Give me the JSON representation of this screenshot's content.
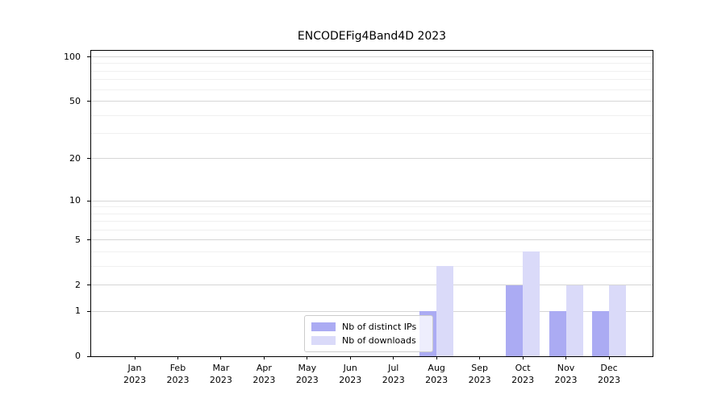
{
  "chart_data": {
    "type": "bar",
    "title": "ENCODEFig4Band4D 2023",
    "categories": [
      "Jan",
      "Feb",
      "Mar",
      "Apr",
      "May",
      "Jun",
      "Jul",
      "Aug",
      "Sep",
      "Oct",
      "Nov",
      "Dec"
    ],
    "x_tick_year": "2023",
    "series": [
      {
        "name": "Nb of distinct IPs",
        "color": "#ababf3",
        "values": [
          0,
          0,
          0,
          0,
          0,
          0,
          0,
          1,
          0,
          2,
          1,
          1
        ]
      },
      {
        "name": "Nb of downloads",
        "color": "#dadaf9",
        "values": [
          0,
          0,
          0,
          0,
          0,
          0,
          0,
          3,
          0,
          4,
          2,
          2
        ]
      }
    ],
    "yscale": "log1p",
    "ylim": [
      0,
      110
    ],
    "y_major_ticks": [
      0,
      1,
      2,
      5,
      10,
      20,
      50,
      100
    ],
    "y_minor_gridlines": [
      3,
      4,
      6,
      7,
      8,
      9,
      30,
      40,
      60,
      70,
      80,
      90
    ],
    "grid": "horizontal",
    "legend_position": "inside lower center",
    "colors": {
      "spine": "#000000",
      "grid_major": "#d6d6d6",
      "grid_minor": "#f0f0f0",
      "background": "#ffffff"
    }
  }
}
